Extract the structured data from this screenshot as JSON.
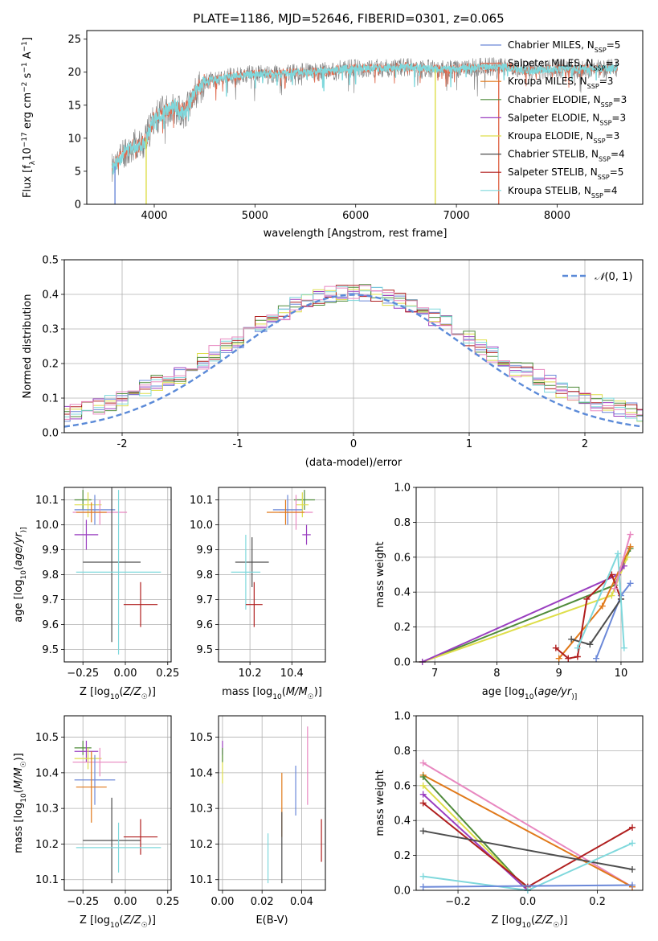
{
  "colors": {
    "Chabrier MILES": "#6b88d8",
    "Salpeter MILES": "#e06b4f",
    "Kroupa MILES": "#e0791a",
    "Chabrier ELODIE": "#4f8b3a",
    "Salpeter ELODIE": "#9a3fc0",
    "Kroupa ELODIE": "#dede4a",
    "Chabrier STELIB": "#4d4d4d",
    "Salpeter STELIB": "#b01f1f",
    "Kroupa STELIB": "#7fd8dc",
    "pink": "#e888c0",
    "normal": "#5b8ad8",
    "spectrum": "#7d7d7d"
  },
  "chart_data": [
    {
      "id": "spectrum",
      "type": "line",
      "title": "PLATE=1186, MJD=52646, FIBERID=0301, z=0.065",
      "xlabel": "wavelength [Angstrom, rest frame]",
      "ylabel_parts": [
        "Flux [f",
        "λ",
        "10",
        "−17",
        " erg cm",
        "−2",
        " s",
        "−1",
        " A",
        "−1",
        "]"
      ],
      "xlim": [
        3330,
        8850
      ],
      "ylim": [
        0,
        26.3
      ],
      "xticks": [
        4000,
        5000,
        6000,
        7000,
        8000
      ],
      "yticks": [
        0,
        5,
        10,
        15,
        20,
        25
      ],
      "grid": false,
      "legend_position": "top-right",
      "legend": [
        {
          "label": "Chabrier MILES, N",
          "sub": "SSP",
          "suffix": "=5",
          "color_key": "Chabrier MILES"
        },
        {
          "label": "Salpeter MILES, N",
          "sub": "SSP",
          "suffix": "=3",
          "color_key": "Salpeter MILES"
        },
        {
          "label": "Kroupa MILES, N",
          "sub": "SSP",
          "suffix": "=3",
          "color_key": "Kroupa MILES"
        },
        {
          "label": "Chabrier ELODIE, N",
          "sub": "SSP",
          "suffix": "=3",
          "color_key": "Chabrier ELODIE"
        },
        {
          "label": "Salpeter ELODIE, N",
          "sub": "SSP",
          "suffix": "=3",
          "color_key": "Salpeter ELODIE"
        },
        {
          "label": "Kroupa ELODIE, N",
          "sub": "SSP",
          "suffix": "=3",
          "color_key": "Kroupa ELODIE"
        },
        {
          "label": "Chabrier STELIB, N",
          "sub": "SSP",
          "suffix": "=4",
          "color_key": "Chabrier STELIB"
        },
        {
          "label": "Salpeter STELIB, N",
          "sub": "SSP",
          "suffix": "=5",
          "color_key": "Salpeter STELIB"
        },
        {
          "label": "Kroupa STELIB, N",
          "sub": "SSP",
          "suffix": "=4",
          "color_key": "Kroupa STELIB"
        }
      ],
      "continuum": {
        "x": [
          3600,
          3700,
          3800,
          3900,
          4000,
          4100,
          4200,
          4300,
          4400,
          4500,
          4700,
          4900,
          5100,
          5300,
          5500,
          5700,
          5900,
          6100,
          6300,
          6500,
          6700,
          6900,
          7100,
          7300,
          7500,
          7700,
          7900,
          8100,
          8300,
          8500
        ],
        "y": [
          5.5,
          8.0,
          8.8,
          9.2,
          13.0,
          14.0,
          14.8,
          13.8,
          16.8,
          18.5,
          19.2,
          19.6,
          19.7,
          19.8,
          20.0,
          20.1,
          20.5,
          20.6,
          20.6,
          20.8,
          20.5,
          20.4,
          20.6,
          20.8,
          20.8,
          20.2,
          20.4,
          20.5,
          20.5,
          20.6
        ]
      },
      "dips": [
        {
          "x": 3610,
          "y": 0,
          "color_key": "Chabrier MILES"
        },
        {
          "x": 3920,
          "y": 0,
          "color_key": "Kroupa ELODIE"
        },
        {
          "x": 6790,
          "y": 0,
          "color_key": "Kroupa ELODIE"
        },
        {
          "x": 7420,
          "y": 0,
          "color_key": "Salpeter MILES"
        }
      ]
    },
    {
      "id": "residuals",
      "type": "histogram",
      "xlabel": "(data-model)/error",
      "ylabel": "Normed distribution",
      "xlim": [
        -2.5,
        2.5
      ],
      "ylim": [
        0,
        0.5
      ],
      "xticks": [
        -2,
        -1,
        0,
        1,
        2
      ],
      "yticks": [
        0.0,
        0.1,
        0.2,
        0.3,
        0.4,
        0.5
      ],
      "grid": true,
      "legend_position": "top-right",
      "legend_label_parts": [
        "𝒩",
        "(0, 1)"
      ],
      "bin_width": 0.1,
      "series": [
        {
          "color_key": "Chabrier MILES",
          "seed": 1
        },
        {
          "color_key": "Salpeter ELODIE",
          "seed": 2
        },
        {
          "color_key": "Kroupa ELODIE",
          "seed": 3
        },
        {
          "color_key": "Chabrier ELODIE",
          "seed": 4
        },
        {
          "color_key": "Salpeter STELIB",
          "seed": 5
        },
        {
          "color_key": "Kroupa STELIB",
          "seed": 6
        },
        {
          "color_key": "pink",
          "seed": 7
        }
      ],
      "normal_curve": {
        "mean": 0,
        "sigma": 1,
        "color_key": "normal"
      }
    },
    {
      "id": "age-vs-Z",
      "type": "errorbar",
      "xlabel_parts": [
        "Z [log",
        "10",
        "(",
        "Z/Z",
        "☉",
        ")]"
      ],
      "ylabel_parts": [
        "age  [log",
        "10",
        "(",
        "age/yr",
        ")]"
      ],
      "xlim": [
        -0.36,
        0.27
      ],
      "ylim": [
        9.45,
        10.15
      ],
      "xticks": [
        -0.25,
        0.0,
        0.25
      ],
      "xtick_labels": [
        "−0.25",
        "0.00",
        "0.25"
      ],
      "yticks": [
        9.5,
        9.6,
        9.7,
        9.8,
        9.9,
        10.0,
        10.1
      ],
      "grid": true,
      "points": [
        {
          "x": -0.25,
          "xerr": 0.05,
          "y": 10.1,
          "yerr": 0.04,
          "color_key": "Chabrier ELODIE"
        },
        {
          "x": -0.22,
          "xerr": 0.08,
          "y": 10.08,
          "yerr": 0.05,
          "color_key": "Kroupa ELODIE"
        },
        {
          "x": -0.18,
          "xerr": 0.12,
          "y": 10.06,
          "yerr": 0.06,
          "color_key": "Chabrier MILES"
        },
        {
          "x": -0.15,
          "xerr": 0.16,
          "y": 10.05,
          "yerr": 0.05,
          "color_key": "pink"
        },
        {
          "x": -0.2,
          "xerr": 0.09,
          "y": 10.05,
          "yerr": 0.04,
          "color_key": "Kroupa MILES"
        },
        {
          "x": -0.23,
          "xerr": 0.07,
          "y": 9.96,
          "yerr": 0.06,
          "color_key": "Salpeter ELODIE"
        },
        {
          "x": -0.08,
          "xerr": 0.17,
          "y": 9.85,
          "yerr": 0.32,
          "color_key": "Chabrier STELIB"
        },
        {
          "x": -0.04,
          "xerr": 0.25,
          "y": 9.81,
          "yerr": 0.33,
          "color_key": "Kroupa STELIB"
        },
        {
          "x": 0.09,
          "xerr": 0.1,
          "y": 9.68,
          "yerr": 0.09,
          "color_key": "Salpeter STELIB"
        }
      ]
    },
    {
      "id": "age-vs-mass",
      "type": "errorbar",
      "xlabel_parts": [
        "mass [log",
        "10",
        "(",
        "M/M",
        "☉",
        ")]"
      ],
      "xlim": [
        10.05,
        10.56
      ],
      "ylim": [
        9.45,
        10.15
      ],
      "xticks": [
        10.2,
        10.4
      ],
      "xtick_labels": [
        "10.2",
        "10.4"
      ],
      "yticks": [
        9.5,
        9.6,
        9.7,
        9.8,
        9.9,
        10.0,
        10.1
      ],
      "grid": true,
      "points": [
        {
          "x": 10.46,
          "xerr": 0.05,
          "y": 10.1,
          "yerr": 0.04,
          "color_key": "Chabrier ELODIE"
        },
        {
          "x": 10.45,
          "xerr": 0.03,
          "y": 10.08,
          "yerr": 0.05,
          "color_key": "Kroupa ELODIE"
        },
        {
          "x": 10.42,
          "xerr": 0.08,
          "y": 10.05,
          "yerr": 0.07,
          "color_key": "pink"
        },
        {
          "x": 10.38,
          "xerr": 0.07,
          "y": 10.06,
          "yerr": 0.06,
          "color_key": "Chabrier MILES"
        },
        {
          "x": 10.37,
          "xerr": 0.09,
          "y": 10.05,
          "yerr": 0.05,
          "color_key": "Kroupa MILES"
        },
        {
          "x": 10.47,
          "xerr": 0.02,
          "y": 9.96,
          "yerr": 0.04,
          "color_key": "Salpeter ELODIE"
        },
        {
          "x": 10.21,
          "xerr": 0.08,
          "y": 9.85,
          "yerr": 0.1,
          "color_key": "Chabrier STELIB"
        },
        {
          "x": 10.18,
          "xerr": 0.07,
          "y": 9.81,
          "yerr": 0.15,
          "color_key": "Kroupa STELIB"
        },
        {
          "x": 10.22,
          "xerr": 0.04,
          "y": 9.68,
          "yerr": 0.09,
          "color_key": "Salpeter STELIB"
        }
      ]
    },
    {
      "id": "weight-vs-age",
      "type": "line",
      "xlabel_parts": [
        "age  [log",
        "10",
        "(",
        "age/yr",
        ")]"
      ],
      "ylabel": "mass weight",
      "xlim": [
        6.7,
        10.35
      ],
      "ylim": [
        0,
        1.0
      ],
      "xticks": [
        7,
        8,
        9,
        10
      ],
      "yticks": [
        0.0,
        0.2,
        0.4,
        0.6,
        0.8,
        1.0
      ],
      "grid": true,
      "series": [
        {
          "color_key": "Chabrier ELODIE",
          "x": [
            6.8,
            9.9,
            10.15
          ],
          "y": [
            0.0,
            0.44,
            0.65
          ]
        },
        {
          "color_key": "Kroupa ELODIE",
          "x": [
            6.8,
            9.85,
            10.1
          ],
          "y": [
            0.0,
            0.38,
            0.6
          ]
        },
        {
          "color_key": "Salpeter ELODIE",
          "x": [
            6.8,
            9.95,
            10.05
          ],
          "y": [
            0.0,
            0.5,
            0.55
          ]
        },
        {
          "color_key": "Kroupa MILES",
          "x": [
            9.0,
            9.7,
            10.15
          ],
          "y": [
            0.02,
            0.32,
            0.66
          ]
        },
        {
          "color_key": "Chabrier MILES",
          "x": [
            9.6,
            10.0,
            10.15
          ],
          "y": [
            0.02,
            0.38,
            0.45
          ]
        },
        {
          "color_key": "Salpeter STELIB",
          "x": [
            8.95,
            9.15,
            9.3,
            9.45,
            9.85,
            10.0
          ],
          "y": [
            0.08,
            0.02,
            0.03,
            0.36,
            0.5,
            0.36
          ]
        },
        {
          "color_key": "Chabrier STELIB",
          "x": [
            9.2,
            9.5,
            10.0
          ],
          "y": [
            0.13,
            0.1,
            0.36
          ]
        },
        {
          "color_key": "Kroupa STELIB",
          "x": [
            9.3,
            9.95,
            10.05
          ],
          "y": [
            0.08,
            0.62,
            0.08
          ]
        },
        {
          "color_key": "pink",
          "x": [
            9.9,
            10.15
          ],
          "y": [
            0.42,
            0.73
          ]
        }
      ]
    },
    {
      "id": "mass-vs-Z",
      "type": "errorbar",
      "xlabel_parts": [
        "Z [log",
        "10",
        "(",
        "Z/Z",
        "☉",
        ")]"
      ],
      "ylabel_parts": [
        "mass [log",
        "10",
        "(",
        "M/M",
        "☉",
        ")]"
      ],
      "xlim": [
        -0.36,
        0.27
      ],
      "ylim": [
        10.07,
        10.56
      ],
      "xticks": [
        -0.25,
        0.0,
        0.25
      ],
      "xtick_labels": [
        "−0.25",
        "0.00",
        "0.25"
      ],
      "yticks": [
        10.1,
        10.2,
        10.3,
        10.4,
        10.5
      ],
      "grid": true,
      "points": [
        {
          "x": -0.25,
          "xerr": 0.05,
          "y": 10.47,
          "yerr": 0.02,
          "color_key": "Chabrier ELODIE"
        },
        {
          "x": -0.23,
          "xerr": 0.07,
          "y": 10.46,
          "yerr": 0.03,
          "color_key": "Salpeter ELODIE"
        },
        {
          "x": -0.22,
          "xerr": 0.08,
          "y": 10.44,
          "yerr": 0.03,
          "color_key": "Kroupa ELODIE"
        },
        {
          "x": -0.15,
          "xerr": 0.16,
          "y": 10.43,
          "yerr": 0.04,
          "color_key": "pink"
        },
        {
          "x": -0.18,
          "xerr": 0.12,
          "y": 10.38,
          "yerr": 0.07,
          "color_key": "Chabrier MILES"
        },
        {
          "x": -0.2,
          "xerr": 0.09,
          "y": 10.36,
          "yerr": 0.1,
          "color_key": "Kroupa MILES"
        },
        {
          "x": -0.08,
          "xerr": 0.17,
          "y": 10.21,
          "yerr": 0.12,
          "color_key": "Chabrier STELIB"
        },
        {
          "x": 0.09,
          "xerr": 0.1,
          "y": 10.22,
          "yerr": 0.05,
          "color_key": "Salpeter STELIB"
        },
        {
          "x": -0.04,
          "xerr": 0.25,
          "y": 10.19,
          "yerr": 0.07,
          "color_key": "Kroupa STELIB"
        }
      ]
    },
    {
      "id": "mass-vs-ebv",
      "type": "errorbar",
      "xlabel": "E(B-V)",
      "xlim": [
        -0.002,
        0.052
      ],
      "ylim": [
        10.07,
        10.56
      ],
      "xticks": [
        0.0,
        0.02,
        0.04
      ],
      "xtick_labels": [
        "0.00",
        "0.02",
        "0.04"
      ],
      "yticks": [
        10.1,
        10.2,
        10.3,
        10.4,
        10.5
      ],
      "grid": true,
      "points": [
        {
          "x": 0.0,
          "xerr": 0,
          "y": 10.47,
          "yerr": 0.02,
          "color_key": "Salpeter ELODIE"
        },
        {
          "x": 0.0,
          "xerr": 0,
          "y": 10.41,
          "yerr": 0.04,
          "color_key": "Kroupa ELODIE"
        },
        {
          "x": 0.0,
          "xerr": 0,
          "y": 10.45,
          "yerr": 0.02,
          "color_key": "Chabrier ELODIE"
        },
        {
          "x": 0.023,
          "xerr": 0,
          "y": 10.16,
          "yerr": 0.07,
          "color_key": "Kroupa STELIB"
        },
        {
          "x": 0.03,
          "xerr": 0,
          "y": 10.31,
          "yerr": 0.09,
          "color_key": "Kroupa MILES"
        },
        {
          "x": 0.03,
          "xerr": 0,
          "y": 10.19,
          "yerr": 0.1,
          "color_key": "Chabrier STELIB"
        },
        {
          "x": 0.037,
          "xerr": 0,
          "y": 10.35,
          "yerr": 0.07,
          "color_key": "Chabrier MILES"
        },
        {
          "x": 0.043,
          "xerr": 0,
          "y": 10.42,
          "yerr": 0.11,
          "color_key": "pink"
        },
        {
          "x": 0.05,
          "xerr": 0,
          "y": 10.21,
          "yerr": 0.06,
          "color_key": "Salpeter STELIB"
        }
      ]
    },
    {
      "id": "weight-vs-Z",
      "type": "line",
      "xlabel_parts": [
        "Z [log",
        "10",
        "(",
        "Z/Z",
        "☉",
        ")]"
      ],
      "ylabel": "mass weight",
      "xlim": [
        -0.32,
        0.33
      ],
      "ylim": [
        0,
        1.0
      ],
      "xticks": [
        -0.2,
        0.0,
        0.2
      ],
      "xtick_labels": [
        "−0.2",
        "0.0",
        "0.2"
      ],
      "yticks": [
        0.0,
        0.2,
        0.4,
        0.6,
        0.8,
        1.0
      ],
      "grid": true,
      "series": [
        {
          "color_key": "pink",
          "x": [
            -0.3,
            0.3
          ],
          "y": [
            0.73,
            0.02
          ]
        },
        {
          "color_key": "Kroupa MILES",
          "x": [
            -0.3,
            0.3
          ],
          "y": [
            0.66,
            0.02
          ]
        },
        {
          "color_key": "Chabrier ELODIE",
          "x": [
            -0.3,
            0.0
          ],
          "y": [
            0.65,
            0.0
          ]
        },
        {
          "color_key": "Kroupa ELODIE",
          "x": [
            -0.3,
            0.0
          ],
          "y": [
            0.6,
            0.0
          ]
        },
        {
          "color_key": "Salpeter ELODIE",
          "x": [
            -0.3,
            0.0
          ],
          "y": [
            0.55,
            0.0
          ]
        },
        {
          "color_key": "Salpeter STELIB",
          "x": [
            -0.3,
            0.0,
            0.3
          ],
          "y": [
            0.5,
            0.02,
            0.36
          ]
        },
        {
          "color_key": "Chabrier STELIB",
          "x": [
            -0.3,
            0.3
          ],
          "y": [
            0.34,
            0.12
          ]
        },
        {
          "color_key": "Kroupa STELIB",
          "x": [
            -0.3,
            0.0,
            0.3
          ],
          "y": [
            0.08,
            0.0,
            0.27
          ]
        },
        {
          "color_key": "Chabrier MILES",
          "x": [
            -0.3,
            0.3
          ],
          "y": [
            0.02,
            0.03
          ]
        }
      ]
    }
  ]
}
